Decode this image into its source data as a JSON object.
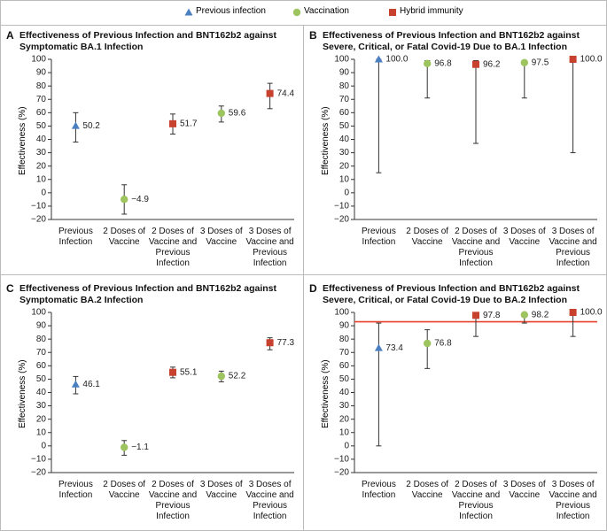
{
  "chart_data": [
    {
      "type": "errorbar",
      "label": "A",
      "title": "Effectiveness of Previous Infection and BNT162b2 against Symptomatic BA.1 Infection",
      "y_label": "Effectiveness (%)",
      "categories": [
        "Previous Infection",
        "2 Doses of Vaccine",
        "2 Doses of Vaccine and Previous Infection",
        "3 Doses of Vaccine",
        "3 Doses of Vaccine and Previous Infection"
      ],
      "ylim": [
        -20,
        100
      ],
      "yticks": [
        {
          "value": -20,
          "label": "−20"
        },
        {
          "value": -10,
          "label": "−10"
        },
        0,
        10,
        20,
        30,
        40,
        50,
        60,
        70,
        80,
        90,
        100
      ],
      "series": [
        {
          "name": "Previous infection",
          "color": "#4a7fc1",
          "marker": "triangle",
          "values": [
            50.2,
            null,
            null,
            null,
            null
          ],
          "value_labels": [
            "50.2",
            null,
            null,
            null,
            null
          ],
          "lower": [
            38,
            null,
            null,
            null,
            null
          ],
          "upper": [
            60,
            null,
            null,
            null,
            null
          ]
        },
        {
          "name": "Vaccination",
          "color": "#9dc45e",
          "marker": "circle",
          "values": [
            null,
            -4.9,
            null,
            59.6,
            null
          ],
          "value_labels": [
            null,
            "−4.9",
            null,
            "59.6",
            null
          ],
          "lower": [
            null,
            -16,
            null,
            53,
            null
          ],
          "upper": [
            null,
            6,
            null,
            65,
            null
          ]
        },
        {
          "name": "Hybrid immunity",
          "color": "#c8412f",
          "marker": "square",
          "values": [
            null,
            null,
            51.7,
            null,
            74.4
          ],
          "value_labels": [
            null,
            null,
            "51.7",
            null,
            "74.4"
          ],
          "lower": [
            null,
            null,
            44,
            null,
            63
          ],
          "upper": [
            null,
            null,
            59,
            null,
            82
          ]
        }
      ]
    },
    {
      "type": "errorbar",
      "label": "B",
      "title": "Effectiveness of Previous Infection and BNT162b2 against Severe, Critical, or Fatal Covid-19 Due to BA.1 Infection",
      "y_label": "Effectiveness (%)",
      "categories": [
        "Previous Infection",
        "2 Doses of Vaccine",
        "2 Doses of Vaccine and Previous Infection",
        "3 Doses of Vaccine",
        "3 Doses of Vaccine and Previous Infection"
      ],
      "ylim": [
        -20,
        100
      ],
      "yticks": [
        {
          "value": -20,
          "label": "−20"
        },
        {
          "value": -10,
          "label": "−10"
        },
        0,
        10,
        20,
        30,
        40,
        50,
        60,
        70,
        80,
        90,
        100
      ],
      "series": [
        {
          "name": "Previous infection",
          "color": "#4a7fc1",
          "marker": "triangle",
          "values": [
            100,
            null,
            null,
            null,
            null
          ],
          "value_labels": [
            "100.0",
            null,
            null,
            null,
            null
          ],
          "lower": [
            15,
            null,
            null,
            null,
            null
          ],
          "upper": [
            100,
            null,
            null,
            null,
            null
          ]
        },
        {
          "name": "Vaccination",
          "color": "#9dc45e",
          "marker": "circle",
          "values": [
            null,
            96.8,
            null,
            97.5,
            null
          ],
          "value_labels": [
            null,
            "96.8",
            null,
            "97.5",
            null
          ],
          "lower": [
            null,
            71,
            null,
            71,
            null
          ],
          "upper": [
            null,
            99,
            null,
            99,
            null
          ]
        },
        {
          "name": "Hybrid immunity",
          "color": "#c8412f",
          "marker": "square",
          "values": [
            null,
            null,
            96.2,
            null,
            100
          ],
          "value_labels": [
            null,
            null,
            "96.2",
            null,
            "100.0"
          ],
          "lower": [
            null,
            null,
            37,
            null,
            30
          ],
          "upper": [
            null,
            null,
            99,
            null,
            100
          ]
        }
      ]
    },
    {
      "type": "errorbar",
      "label": "C",
      "title": "Effectiveness of Previous Infection and BNT162b2 against Symptomatic BA.2 Infection",
      "y_label": "Effectiveness (%)",
      "categories": [
        "Previous Infection",
        "2 Doses of Vaccine",
        "2 Doses of Vaccine and Previous Infection",
        "3 Doses of Vaccine",
        "3 Doses of Vaccine and Previous Infection"
      ],
      "ylim": [
        -20,
        100
      ],
      "yticks": [
        {
          "value": -20,
          "label": "−20"
        },
        {
          "value": -10,
          "label": "−10"
        },
        0,
        10,
        20,
        30,
        40,
        50,
        60,
        70,
        80,
        90,
        100
      ],
      "series": [
        {
          "name": "Previous infection",
          "color": "#4a7fc1",
          "marker": "triangle",
          "values": [
            46.1,
            null,
            null,
            null,
            null
          ],
          "value_labels": [
            "46.1",
            null,
            null,
            null,
            null
          ],
          "lower": [
            39,
            null,
            null,
            null,
            null
          ],
          "upper": [
            52,
            null,
            null,
            null,
            null
          ]
        },
        {
          "name": "Vaccination",
          "color": "#9dc45e",
          "marker": "circle",
          "values": [
            null,
            -1.1,
            null,
            52.2,
            null
          ],
          "value_labels": [
            null,
            "−1.1",
            null,
            "52.2",
            null
          ],
          "lower": [
            null,
            -7,
            null,
            48,
            null
          ],
          "upper": [
            null,
            4,
            null,
            56,
            null
          ]
        },
        {
          "name": "Hybrid immunity",
          "color": "#c8412f",
          "marker": "square",
          "values": [
            null,
            null,
            55.1,
            null,
            77.3
          ],
          "value_labels": [
            null,
            null,
            "55.1",
            null,
            "77.3"
          ],
          "lower": [
            null,
            null,
            51,
            null,
            72
          ],
          "upper": [
            null,
            null,
            59,
            null,
            81
          ]
        }
      ]
    },
    {
      "type": "errorbar",
      "label": "D",
      "title": "Effectiveness of Previous Infection and BNT162b2 against Severe, Critical, or Fatal Covid-19 Due to BA.2 Infection",
      "y_label": "Effectiveness (%)",
      "categories": [
        "Previous Infection",
        "2 Doses of Vaccine",
        "2 Doses of Vaccine and Previous Infection",
        "3 Doses of Vaccine",
        "3 Doses of Vaccine and Previous Infection"
      ],
      "ylim": [
        -20,
        100
      ],
      "yticks": [
        {
          "value": -20,
          "label": "−20"
        },
        {
          "value": -10,
          "label": "−10"
        },
        0,
        10,
        20,
        30,
        40,
        50,
        60,
        70,
        80,
        90,
        100
      ],
      "reference_line": {
        "value": 93,
        "color": "#e8412b"
      },
      "series": [
        {
          "name": "Previous infection",
          "color": "#4a7fc1",
          "marker": "triangle",
          "values": [
            73.4,
            null,
            null,
            null,
            null
          ],
          "value_labels": [
            "73.4",
            null,
            null,
            null,
            null
          ],
          "lower": [
            0,
            null,
            null,
            null,
            null
          ],
          "upper": [
            92,
            null,
            null,
            null,
            null
          ]
        },
        {
          "name": "Vaccination",
          "color": "#9dc45e",
          "marker": "circle",
          "values": [
            null,
            76.8,
            null,
            98.2,
            null
          ],
          "value_labels": [
            null,
            "76.8",
            null,
            "98.2",
            null
          ],
          "lower": [
            null,
            58,
            null,
            92,
            null
          ],
          "upper": [
            null,
            87,
            null,
            99,
            null
          ]
        },
        {
          "name": "Hybrid immunity",
          "color": "#c8412f",
          "marker": "square",
          "values": [
            null,
            null,
            97.8,
            null,
            100
          ],
          "value_labels": [
            null,
            null,
            "97.8",
            null,
            "100.0"
          ],
          "lower": [
            null,
            null,
            82,
            null,
            82
          ],
          "upper": [
            null,
            null,
            99,
            null,
            100
          ]
        }
      ]
    }
  ]
}
